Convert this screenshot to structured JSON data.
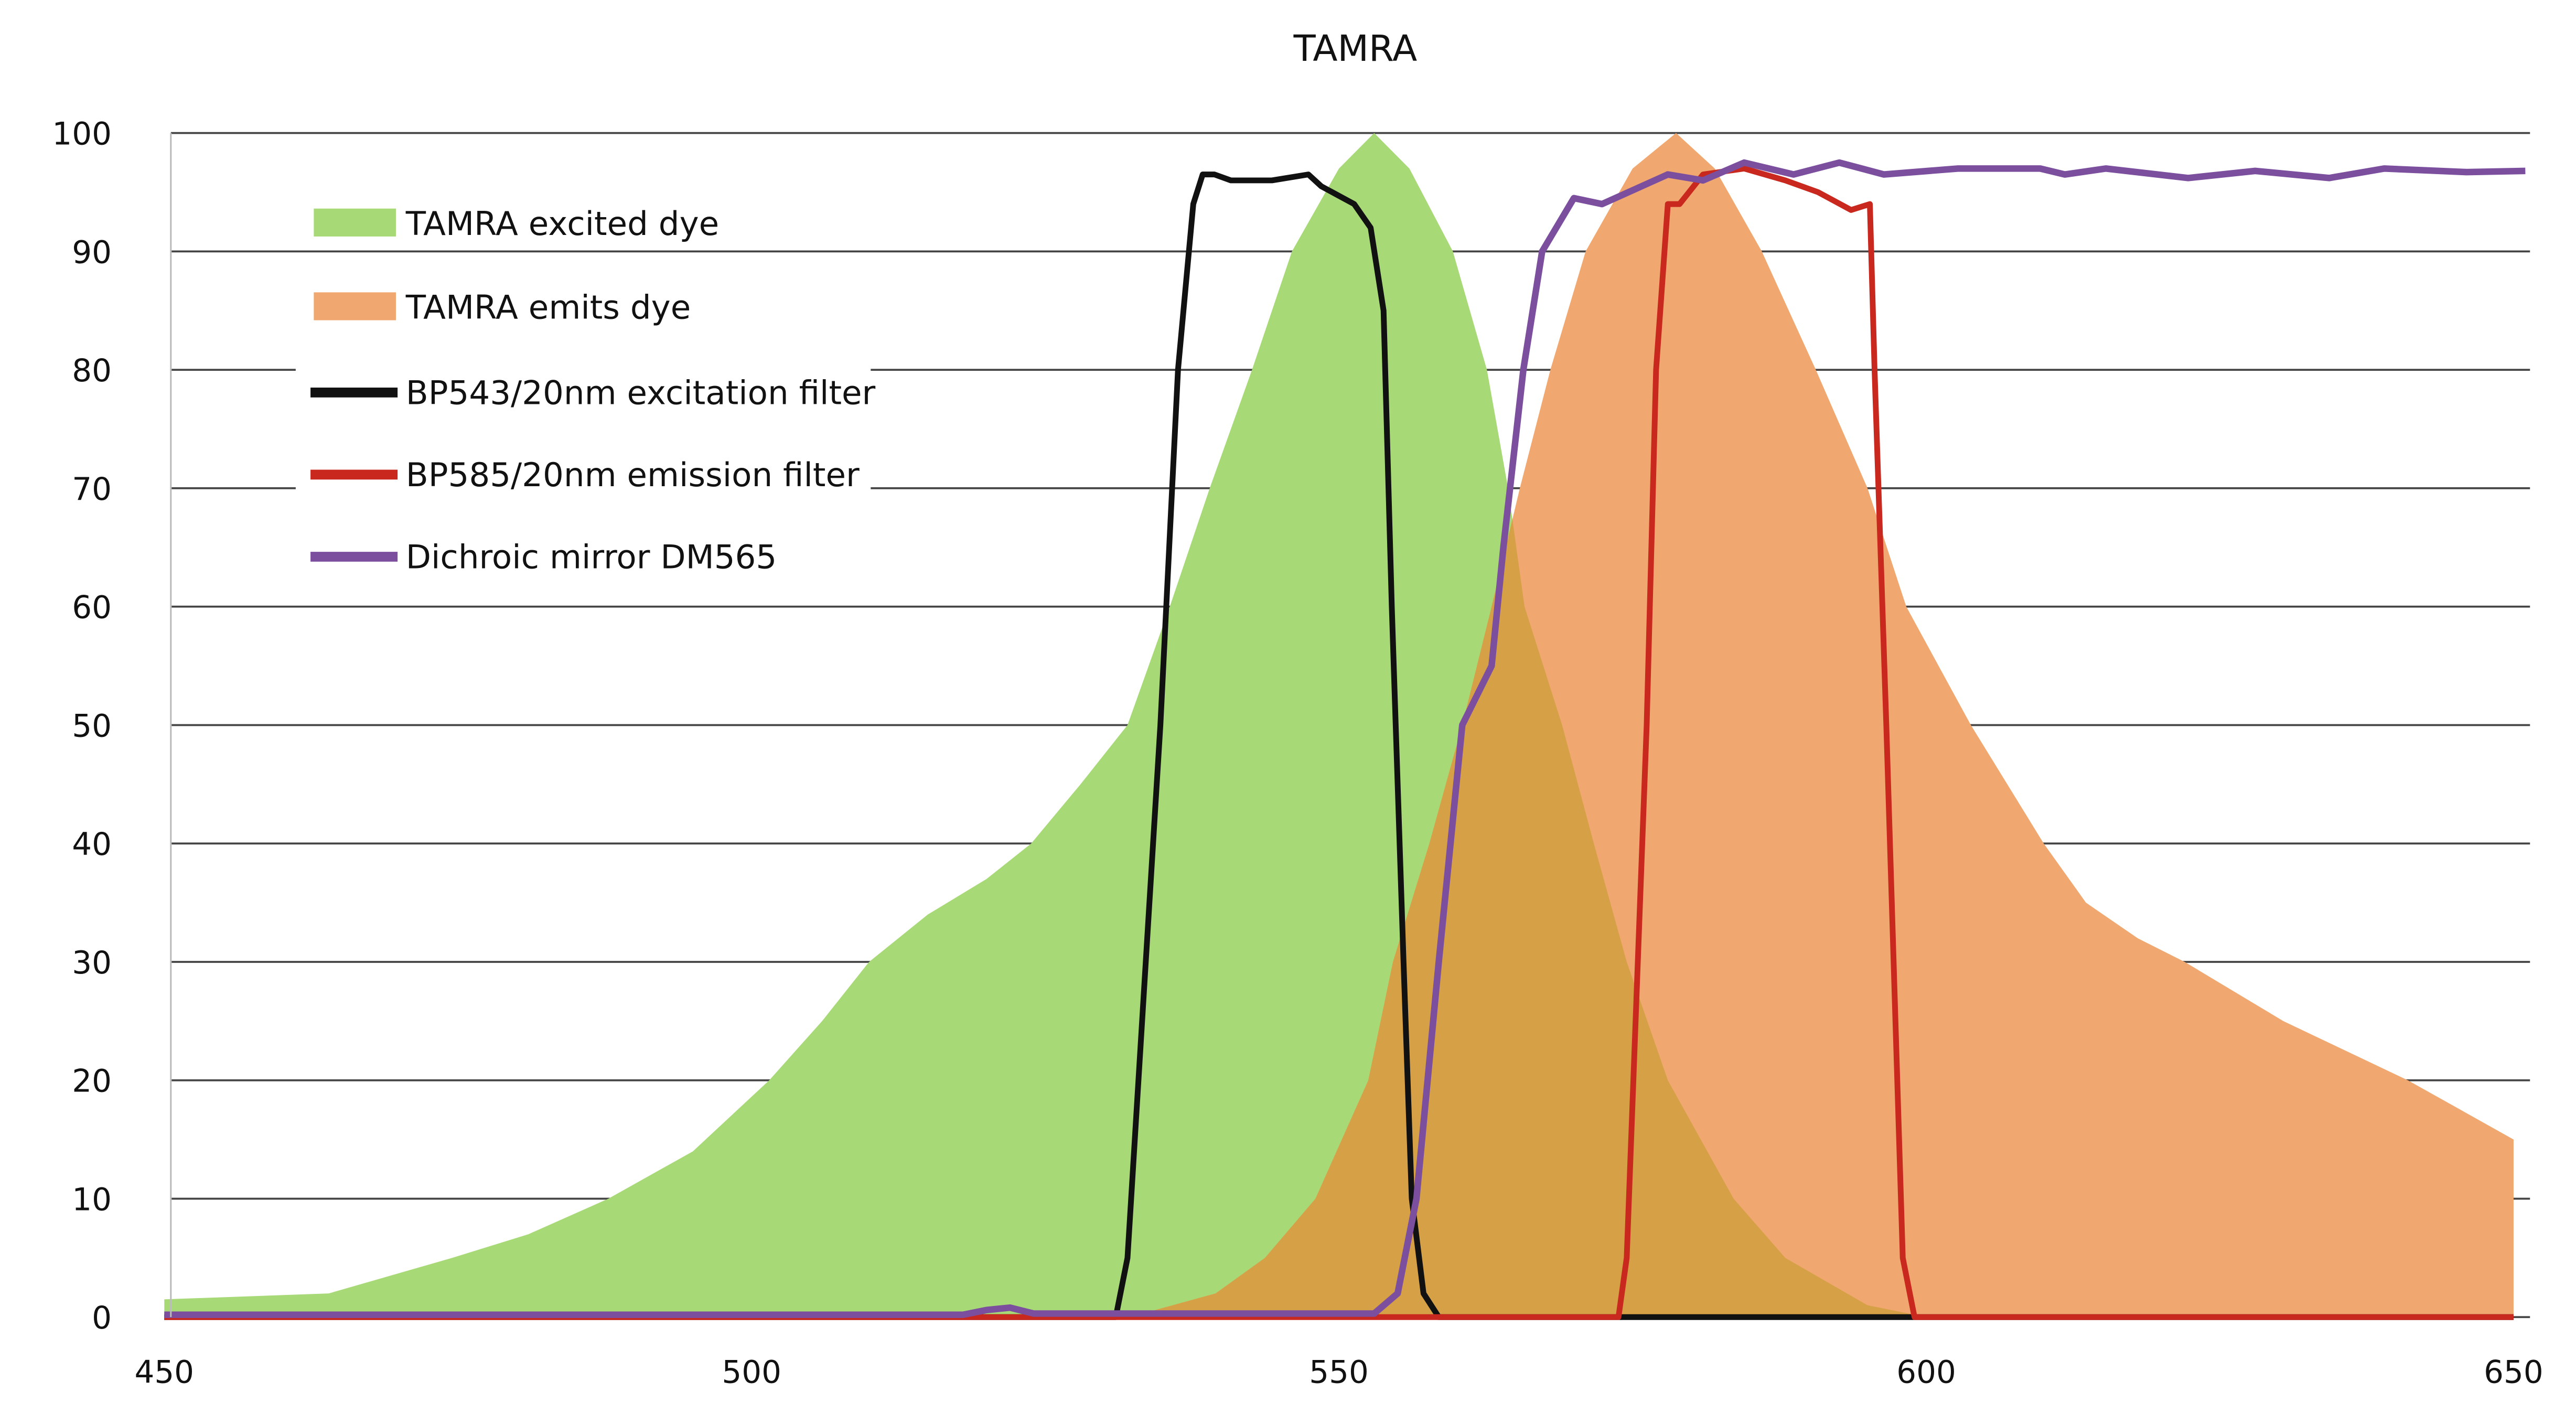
{
  "chart_data": {
    "type": "area",
    "title": "TAMRA",
    "xlabel": "",
    "ylabel": "",
    "xlim": [
      450,
      650
    ],
    "ylim": [
      0,
      100
    ],
    "x_ticks": [
      450,
      500,
      550,
      600,
      650
    ],
    "y_ticks": [
      0,
      10,
      20,
      30,
      40,
      50,
      60,
      70,
      80,
      90,
      100
    ],
    "grid": "horizontal",
    "legend_position": "top-left",
    "overlap_color": "#d6a046",
    "series": [
      {
        "name": "TAMRA excited dye",
        "kind": "area",
        "color": "#a8d977",
        "x": [
          450,
          464,
          474.5,
          481,
          487.8,
          495,
          501.5,
          506,
          510,
          515,
          520,
          523.8,
          528,
          532,
          535.6,
          539,
          542.6,
          546,
          550,
          553,
          556,
          559.7,
          562.6,
          564.4,
          565.8,
          569,
          571.7,
          574.5,
          578,
          583.6,
          588,
          595,
          600,
          650
        ],
        "y": [
          1.5,
          2,
          5,
          7,
          10,
          14,
          20,
          25,
          30,
          34,
          37,
          40,
          45,
          50,
          60,
          70,
          80,
          90,
          97,
          100,
          97,
          90,
          80,
          70,
          60,
          50,
          40,
          30,
          20,
          10,
          5,
          1,
          0,
          0
        ]
      },
      {
        "name": "TAMRA emits dye",
        "kind": "area",
        "color": "#f0a870",
        "x": [
          530,
          534,
          539.5,
          543.7,
          548,
          552.5,
          554.6,
          557.7,
          560.5,
          563,
          565.4,
          568,
          571,
          575,
          578.7,
          582,
          586,
          590.6,
          595,
          598.3,
          603.8,
          610,
          613.6,
          618,
          622,
          630.4,
          641,
          650
        ],
        "y": [
          0,
          0.5,
          2,
          5,
          10,
          20,
          30,
          40,
          50,
          60,
          70,
          80,
          90,
          97,
          100,
          97,
          90,
          80,
          70,
          60,
          50,
          40,
          35,
          32,
          30,
          25,
          20,
          15
        ]
      },
      {
        "name": "BP543/20nm excitation filter",
        "kind": "line",
        "color": "#111111",
        "x": [
          450,
          531,
          532,
          534.8,
          536.3,
          537.6,
          538.4,
          539.4,
          540.8,
          544.3,
          547.4,
          548.5,
          551.3,
          552.7,
          553.8,
          554.5,
          555.5,
          556.2,
          557.2,
          558.5,
          650
        ],
        "y": [
          0,
          0,
          5,
          50,
          80,
          94,
          96.5,
          96.5,
          96,
          96,
          96.5,
          95.5,
          94,
          92,
          85,
          60,
          30,
          10,
          2,
          0,
          0
        ]
      },
      {
        "name": "BP585/20nm emission filter",
        "kind": "line",
        "color": "#c8281e",
        "x": [
          450,
          573.8,
          574.5,
          576.2,
          577,
          578,
          579,
          581,
          584.5,
          588,
          590.8,
          593.6,
          595.2,
          595.6,
          596.6,
          598,
          599,
          650
        ],
        "y": [
          0,
          0,
          5,
          50,
          80,
          94,
          94,
          96.5,
          97,
          96,
          95,
          93.5,
          94,
          80,
          50,
          5,
          0,
          0
        ]
      },
      {
        "name": "Dichroic mirror DM565",
        "kind": "line",
        "color": "#7b4f9e",
        "x": [
          450,
          518,
          520,
          522,
          524,
          553,
          555,
          556.6,
          558.5,
          560.5,
          562,
          563,
          564,
          565.7,
          567.3,
          570,
          572.4,
          578,
          581,
          584.5,
          588.7,
          592.6,
          596.4,
          602.7,
          609.7,
          611.8,
          615.3,
          622.3,
          628,
          634.3,
          639,
          646,
          651
        ],
        "y": [
          0.2,
          0.2,
          0.6,
          0.8,
          0.3,
          0.3,
          2,
          10,
          30,
          50,
          53,
          55,
          65,
          80,
          90,
          94.5,
          94,
          96.5,
          96,
          97.5,
          96.5,
          97.5,
          96.5,
          97,
          97,
          96.5,
          97,
          96.2,
          96.8,
          96.2,
          97,
          96.7,
          96.8
        ]
      }
    ]
  }
}
